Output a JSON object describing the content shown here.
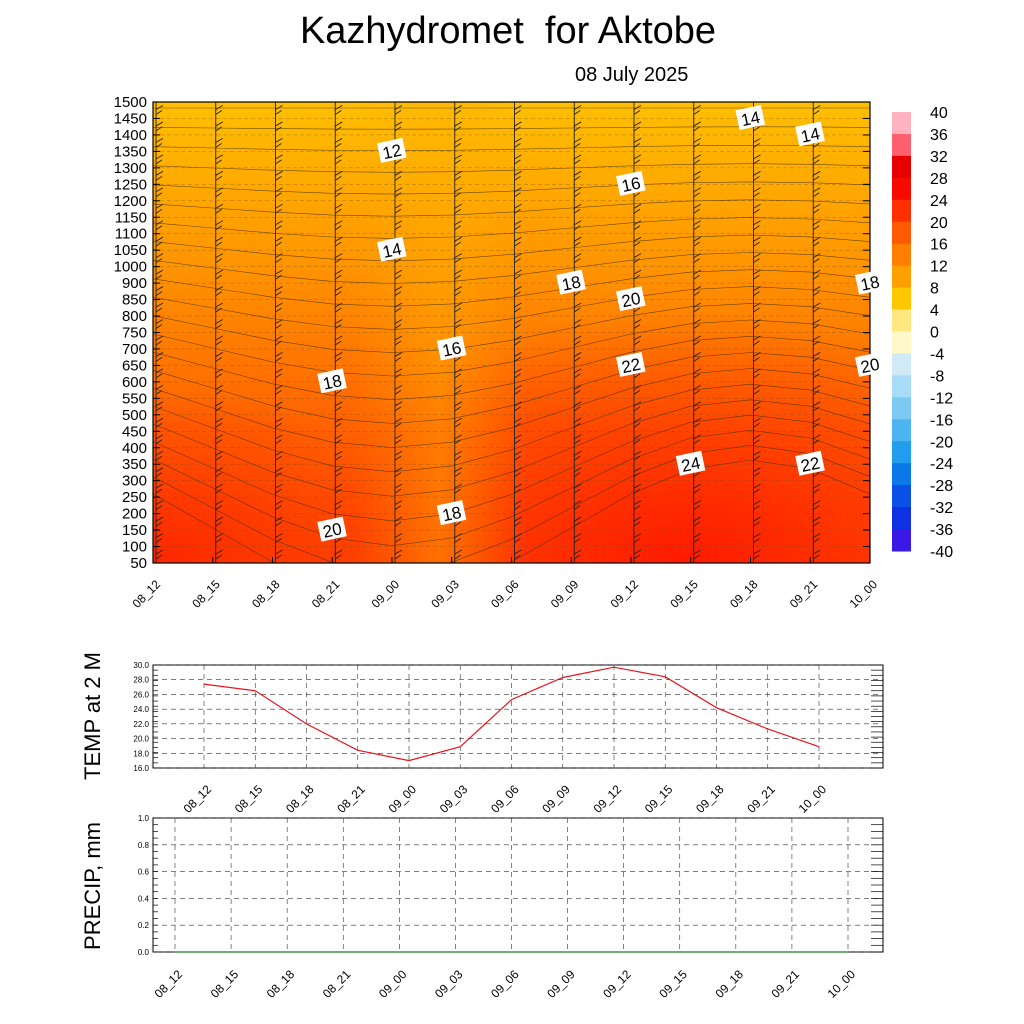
{
  "title": "Kazhydromet  for Aktobe",
  "date": "08 July 2025",
  "chart_data": [
    {
      "type": "heatmap",
      "description_type": "time-height cross section of temperature with contour labels and wind barbs",
      "x_categories": [
        "08_12",
        "08_15",
        "08_18",
        "08_21",
        "09_00",
        "09_03",
        "09_06",
        "09_09",
        "09_12",
        "09_15",
        "09_18",
        "09_21",
        "10_00"
      ],
      "y_ticks": [
        50,
        100,
        150,
        200,
        250,
        300,
        350,
        400,
        450,
        500,
        550,
        600,
        650,
        700,
        750,
        800,
        850,
        900,
        1000,
        1050,
        1100,
        1150,
        1200,
        1250,
        1300,
        1350,
        1400,
        1450,
        1500
      ],
      "contour_labels": [
        {
          "value": "12",
          "x": "09_00",
          "y": 1350
        },
        {
          "value": "14",
          "x": "09_00",
          "y": 1050
        },
        {
          "value": "14",
          "x": "09_18",
          "y": 1450
        },
        {
          "value": "14",
          "x": "09_21",
          "y": 1400
        },
        {
          "value": "16",
          "x": "09_03",
          "y": 700
        },
        {
          "value": "16",
          "x": "09_12",
          "y": 1250
        },
        {
          "value": "18",
          "x": "08_21",
          "y": 600
        },
        {
          "value": "18",
          "x": "09_09",
          "y": 900
        },
        {
          "value": "18",
          "x": "09_03",
          "y": 200
        },
        {
          "value": "18",
          "x": "10_00",
          "y": 900
        },
        {
          "value": "20",
          "x": "09_12",
          "y": 850
        },
        {
          "value": "20",
          "x": "08_21",
          "y": 150
        },
        {
          "value": "20",
          "x": "10_00",
          "y": 650
        },
        {
          "value": "22",
          "x": "09_12",
          "y": 650
        },
        {
          "value": "22",
          "x": "09_21",
          "y": 350
        },
        {
          "value": "24",
          "x": "09_15",
          "y": 350
        }
      ],
      "colorbar": {
        "labels": [
          "40",
          "36",
          "32",
          "28",
          "24",
          "20",
          "16",
          "12",
          "8",
          "4",
          "0",
          "-4",
          "-8",
          "-12",
          "-16",
          "-20",
          "-24",
          "-28",
          "-32",
          "-36",
          "-40"
        ],
        "range": [
          -40,
          40
        ]
      }
    },
    {
      "type": "line",
      "ylabel": "TEMP at 2 M",
      "x": [
        "08_12",
        "08_15",
        "08_18",
        "08_21",
        "09_00",
        "09_03",
        "09_06",
        "09_09",
        "09_12",
        "09_15",
        "09_18",
        "09_21",
        "10_00"
      ],
      "values": [
        27.4,
        26.5,
        22.0,
        18.4,
        17.0,
        18.9,
        25.3,
        28.3,
        29.7,
        28.4,
        24.2,
        21.3,
        18.9
      ],
      "y_ticks": [
        "16.0",
        "18.0",
        "20.0",
        "22.0",
        "24.0",
        "26.0",
        "28.0",
        "30.0"
      ],
      "ylim": [
        16,
        30
      ],
      "line_color": "#e8141b",
      "grid": true
    },
    {
      "type": "line",
      "ylabel": "PRECIP, mm",
      "x": [
        "08_12",
        "08_15",
        "08_18",
        "08_21",
        "09_00",
        "09_03",
        "09_06",
        "09_09",
        "09_12",
        "09_15",
        "09_18",
        "09_21",
        "10_00"
      ],
      "values": [
        0,
        0,
        0,
        0,
        0,
        0,
        0,
        0,
        0,
        0,
        0,
        0,
        0
      ],
      "y_ticks": [
        "0.0",
        "0.2",
        "0.4",
        "0.6",
        "0.8",
        "1.0"
      ],
      "ylim": [
        0,
        1
      ],
      "line_color": "#1a7a1a",
      "grid": true
    }
  ]
}
